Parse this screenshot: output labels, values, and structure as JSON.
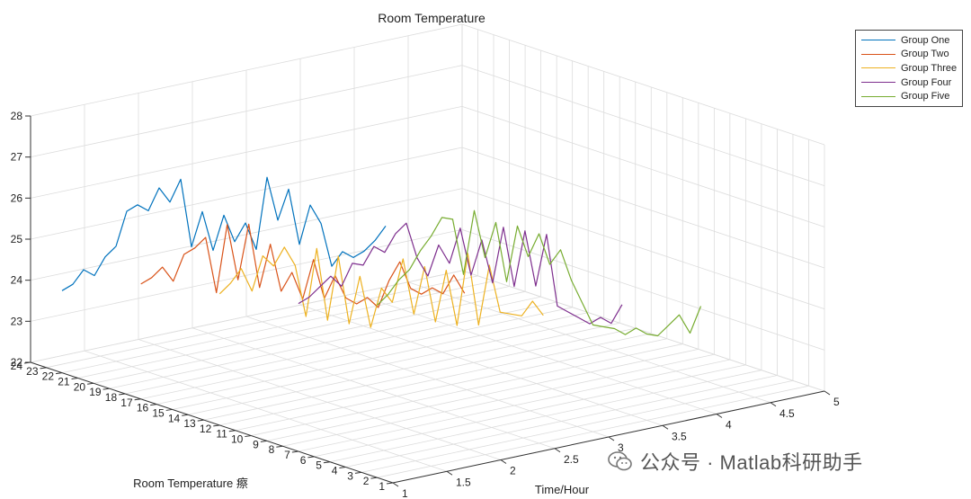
{
  "watermark": {
    "text": "公众号 · Matlab科研助手"
  },
  "chart_data": {
    "type": "line3d",
    "title": "Room Temperature",
    "xlabel": "Time/Hour",
    "ylabel": "Room Temperature 瘵",
    "zlabel": "",
    "xlim": [
      1,
      5
    ],
    "ylim": [
      1,
      24
    ],
    "zlim": [
      22,
      28
    ],
    "x_ticks": [
      1,
      1.5,
      2,
      2.5,
      3,
      3.5,
      4,
      4.5,
      5
    ],
    "y_ticks": [
      1,
      2,
      3,
      4,
      5,
      6,
      7,
      8,
      9,
      10,
      11,
      12,
      13,
      14,
      15,
      16,
      17,
      18,
      19,
      20,
      21,
      22,
      23,
      24
    ],
    "z_ticks": [
      22,
      23,
      24,
      25,
      26,
      27,
      28
    ],
    "grid": true,
    "legend_position": "top-right",
    "series": [
      {
        "name": "Group One",
        "color": "#0072BD",
        "y": 22,
        "x": [
          1.0,
          1.1,
          1.2,
          1.3,
          1.4,
          1.5,
          1.6,
          1.7,
          1.8,
          1.9,
          2.0,
          2.1,
          2.2,
          2.3,
          2.4,
          2.5,
          2.6,
          2.7,
          2.8,
          2.9,
          3.0,
          3.1,
          3.2,
          3.3,
          3.4,
          3.5,
          3.6,
          3.7,
          3.8,
          3.9,
          4.0
        ],
        "z": [
          24.0,
          24.1,
          24.4,
          24.2,
          24.6,
          24.8,
          25.6,
          25.7,
          25.5,
          26.0,
          25.6,
          26.1,
          24.4,
          25.2,
          24.2,
          25.0,
          24.3,
          24.7,
          24.0,
          25.7,
          24.6,
          25.3,
          23.9,
          24.8,
          24.3,
          23.2,
          23.5,
          23.3,
          23.4,
          23.6,
          23.9
        ]
      },
      {
        "name": "Group Two",
        "color": "#D95319",
        "y": 17,
        "x": [
          1.0,
          1.1,
          1.2,
          1.3,
          1.4,
          1.5,
          1.6,
          1.7,
          1.8,
          1.9,
          2.0,
          2.1,
          2.2,
          2.3,
          2.4,
          2.5,
          2.6,
          2.7,
          2.8,
          2.9,
          3.0,
          3.1,
          3.2,
          3.3,
          3.4,
          3.5,
          3.6,
          3.7,
          3.8,
          3.9,
          4.0
        ],
        "z": [
          24.8,
          24.9,
          25.1,
          24.7,
          25.3,
          25.4,
          25.6,
          24.2,
          25.8,
          24.4,
          25.7,
          24.1,
          25.1,
          23.9,
          24.3,
          23.6,
          24.5,
          23.5,
          24.0,
          23.4,
          23.2,
          23.3,
          23.0,
          23.6,
          24.0,
          23.3,
          23.1,
          23.2,
          23.0,
          23.4,
          22.9
        ]
      },
      {
        "name": "Group Three",
        "color": "#EDB120",
        "y": 12,
        "x": [
          1.0,
          1.1,
          1.2,
          1.3,
          1.4,
          1.5,
          1.6,
          1.7,
          1.8,
          1.9,
          2.0,
          2.1,
          2.2,
          2.3,
          2.4,
          2.5,
          2.6,
          2.7,
          2.8,
          2.9,
          3.0,
          3.1,
          3.2,
          3.3,
          3.4,
          3.5,
          3.6,
          3.7,
          3.8,
          3.9,
          4.0
        ],
        "z": [
          25.2,
          25.4,
          25.7,
          25.1,
          25.9,
          25.6,
          26.0,
          25.5,
          24.2,
          25.8,
          24.0,
          25.5,
          23.8,
          24.9,
          23.6,
          24.5,
          24.1,
          25.1,
          23.7,
          24.8,
          23.4,
          24.6,
          23.2,
          24.9,
          23.1,
          24.5,
          23.3,
          23.2,
          23.1,
          23.4,
          23.0
        ]
      },
      {
        "name": "Group Four",
        "color": "#7E2F8E",
        "y": 7,
        "x": [
          1.0,
          1.1,
          1.2,
          1.3,
          1.4,
          1.5,
          1.6,
          1.7,
          1.8,
          1.9,
          2.0,
          2.1,
          2.2,
          2.3,
          2.4,
          2.5,
          2.6,
          2.7,
          2.8,
          2.9,
          3.0,
          3.1,
          3.2,
          3.3,
          3.4,
          3.5,
          3.6,
          3.7,
          3.8,
          3.9,
          4.0
        ],
        "z": [
          25.6,
          25.7,
          25.9,
          26.1,
          25.8,
          26.3,
          26.2,
          26.6,
          26.4,
          26.8,
          27.0,
          26.1,
          25.6,
          26.3,
          25.8,
          26.6,
          25.4,
          26.2,
          25.1,
          26.4,
          24.9,
          26.2,
          24.8,
          26.0,
          24.2,
          24.0,
          23.8,
          23.6,
          23.7,
          23.5,
          23.9
        ]
      },
      {
        "name": "Group Five",
        "color": "#77AC30",
        "y": 2,
        "x": [
          1.0,
          1.1,
          1.2,
          1.3,
          1.4,
          1.5,
          1.6,
          1.7,
          1.8,
          1.9,
          2.0,
          2.1,
          2.2,
          2.3,
          2.4,
          2.5,
          2.6,
          2.7,
          2.8,
          2.9,
          3.0,
          3.1,
          3.2,
          3.3,
          3.4,
          3.5,
          3.6,
          3.7,
          3.8,
          3.9,
          4.0
        ],
        "z": [
          26.2,
          26.4,
          26.7,
          26.9,
          27.3,
          27.6,
          28.0,
          27.9,
          26.5,
          28.0,
          26.8,
          27.6,
          26.1,
          27.4,
          26.6,
          27.1,
          26.3,
          26.6,
          25.8,
          25.2,
          24.6,
          24.5,
          24.4,
          24.2,
          24.3,
          24.1,
          24.0,
          24.2,
          24.4,
          23.9,
          24.5
        ]
      }
    ]
  }
}
